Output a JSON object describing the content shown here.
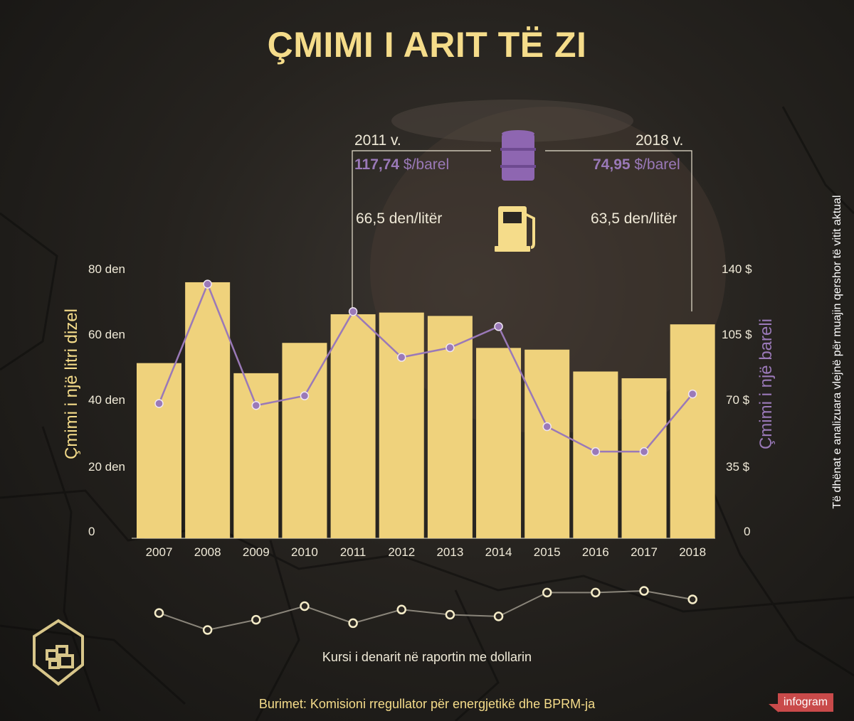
{
  "title": "ÇMIMI I ARIT TË ZI",
  "compare": {
    "left_year": "2011 v.",
    "left_oil_value": "117,74",
    "left_oil_unit": " $/barel",
    "left_diesel": "66,5 den/litër",
    "right_year": "2018 v.",
    "right_oil_value": "74,95",
    "right_oil_unit": " $/barel",
    "right_diesel": "63,5 den/litër",
    "icons": [
      "oil-barrel-icon",
      "fuel-pump-icon"
    ]
  },
  "axis": {
    "left_title": "Çmimi i një litri dizel",
    "right_title": "Çmimi i një bareli",
    "left_ticks": [
      "80 den",
      "60 den",
      "40 den",
      "20 den",
      "0"
    ],
    "right_ticks": [
      "140 $",
      "105 $",
      "70 $",
      "35 $",
      "0"
    ]
  },
  "side_note": "Të dhënat e analizuara vlejnë për muajin qershor të vitit aktual",
  "exchange_label": "Kursi i denarit në raportin me dollarin",
  "source": "Burimet: Komisioni rregullator për energjetikë dhe BPRM-ja",
  "brand": "infogram",
  "colors": {
    "bar": "#efd27c",
    "line": "#9a79b8",
    "title": "#f5dc8a",
    "brand": "#c94a4a"
  },
  "chart_data": [
    {
      "type": "bar",
      "categories": [
        "2007",
        "2008",
        "2009",
        "2010",
        "2011",
        "2012",
        "2013",
        "2014",
        "2015",
        "2016",
        "2017",
        "2018"
      ],
      "series": [
        {
          "values": [
            52,
            76,
            49,
            58,
            66.5,
            67,
            66,
            56.5,
            56,
            49.5,
            47.5,
            63.5
          ]
        }
      ],
      "ylabel": "Çmimi i një litri dizel",
      "ylim": [
        0,
        80
      ]
    },
    {
      "type": "line",
      "categories": [
        "2007",
        "2008",
        "2009",
        "2010",
        "2011",
        "2012",
        "2013",
        "2014",
        "2015",
        "2016",
        "2017",
        "2018"
      ],
      "series": [
        {
          "values": [
            70,
            132,
            69,
            74,
            117.74,
            94,
            99,
            110,
            58,
            45,
            45,
            74.95
          ]
        }
      ],
      "ylabel": "Çmimi i një bareli",
      "ylim": [
        0,
        140
      ]
    },
    {
      "type": "line",
      "title": "Kursi i denarit në raportin me dollarin",
      "categories": [
        "2007",
        "2008",
        "2009",
        "2010",
        "2011",
        "2012",
        "2013",
        "2014",
        "2015",
        "2016",
        "2017",
        "2018"
      ],
      "series": [
        {
          "values": [
            45,
            40,
            43,
            47,
            42,
            46,
            44.5,
            44,
            51,
            51,
            51.5,
            49
          ]
        }
      ]
    }
  ]
}
